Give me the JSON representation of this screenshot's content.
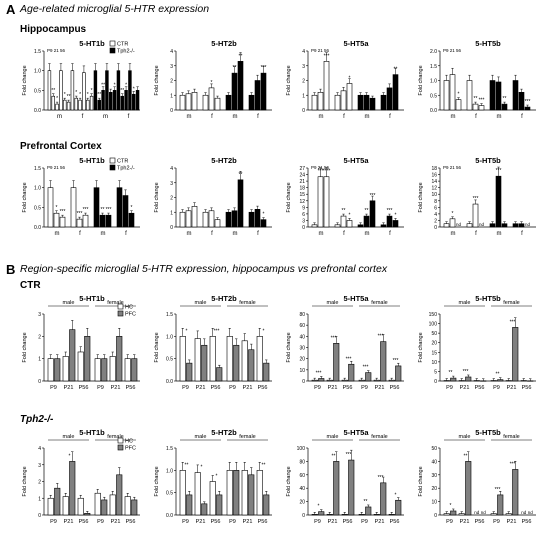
{
  "figure": {
    "sectionA": {
      "letter": "A",
      "title": "Age-related microglial 5-HTR expression"
    },
    "sectionB": {
      "letter": "B",
      "title": "Region-specific microglial 5-HTR expression, hippocampus vs prefrontal cortex"
    },
    "rowHippocampus": "Hippocampus",
    "rowPFC": "Prefrontal Cortex",
    "rowCTR": "CTR",
    "rowTph2": "Tph2-/-"
  },
  "chart_data": [
    {
      "id": "A1",
      "type": "bar",
      "title": "5-HT1b",
      "ylabel": "Fold change",
      "ylim": [
        0,
        1.5
      ],
      "yticks": [
        "0.0",
        "0.5",
        "1.0",
        "1.5"
      ],
      "top_label": "P9 21 56",
      "legend": [
        {
          "name": "CTR",
          "color": "#ffffff"
        },
        {
          "name": "Tph2-/-",
          "color": "#000000"
        }
      ],
      "groups": [
        "m",
        "f",
        "m",
        "f"
      ],
      "series": [
        {
          "name": "CTR",
          "values": [
            1.0,
            0.35,
            0.15,
            1.0,
            0.25,
            0.2
          ]
        },
        {
          "name": "CTR",
          "values": [
            1.0,
            0.3,
            0.25,
            0.95,
            0.25,
            0.35
          ]
        },
        {
          "name": "Tph2-/-",
          "values": [
            1.0,
            0.25,
            0.5,
            1.0,
            0.45,
            0.5
          ]
        },
        {
          "name": "Tph2-/-",
          "values": [
            1.0,
            0.35,
            0.5,
            1.0,
            0.4,
            0.5
          ]
        }
      ],
      "sig": [
        "",
        "**",
        "*",
        "",
        "*",
        "**",
        "",
        "*",
        "*",
        "",
        "*",
        "*",
        "",
        "**",
        "**",
        "",
        "",
        "*",
        "",
        "**",
        "*",
        "",
        "*",
        ""
      ]
    },
    {
      "id": "A2",
      "type": "bar",
      "title": "5-HT2b",
      "ylabel": "Fold change",
      "ylim": [
        0,
        4
      ],
      "yticks": [
        "0",
        "1",
        "2",
        "3",
        "4"
      ],
      "groups": [
        "m",
        "f",
        "m",
        "f"
      ],
      "series": [
        {
          "name": "CTR",
          "values": [
            1.0,
            1.1,
            1.2
          ]
        },
        {
          "name": "CTR",
          "values": [
            1.0,
            1.5,
            0.8
          ]
        },
        {
          "name": "Tph2-/-",
          "values": [
            1.0,
            2.5,
            3.3
          ]
        },
        {
          "name": "Tph2-/-",
          "values": [
            1.0,
            2.0,
            2.5
          ]
        }
      ],
      "sig": [
        "",
        "",
        "",
        "",
        "*",
        "",
        "",
        "**",
        "**",
        "",
        "",
        "***"
      ]
    },
    {
      "id": "A3",
      "type": "bar",
      "title": "5-HT5a",
      "ylabel": "Fold change",
      "ylim": [
        0,
        4
      ],
      "yticks": [
        "0",
        "1",
        "2",
        "3",
        "4"
      ],
      "top_label": "P9 21 56",
      "groups": [
        "m",
        "f",
        "m",
        "f"
      ],
      "series": [
        {
          "name": "CTR",
          "values": [
            1.0,
            1.2,
            3.3
          ]
        },
        {
          "name": "CTR",
          "values": [
            1.0,
            1.3,
            1.8
          ]
        },
        {
          "name": "Tph2-/-",
          "values": [
            1.0,
            1.0,
            0.8
          ]
        },
        {
          "name": "Tph2-/-",
          "values": [
            1.0,
            1.5,
            2.4
          ]
        }
      ],
      "sig": [
        "",
        "",
        "***",
        "",
        "",
        "*",
        "",
        "",
        "",
        "",
        "",
        "**"
      ]
    },
    {
      "id": "A4",
      "type": "bar",
      "title": "5-HT5b",
      "ylabel": "Fold change",
      "ylim": [
        0,
        2.0
      ],
      "yticks": [
        "0.0",
        "0.5",
        "1.0",
        "1.5",
        "2.0"
      ],
      "top_label": "P9 21 56",
      "groups": [
        "m",
        "f",
        "m",
        "f"
      ],
      "series": [
        {
          "name": "CTR",
          "values": [
            1.0,
            1.2,
            0.35
          ]
        },
        {
          "name": "CTR",
          "values": [
            1.0,
            0.2,
            0.15
          ]
        },
        {
          "name": "Tph2-/-",
          "values": [
            1.0,
            0.95,
            0.2
          ]
        },
        {
          "name": "Tph2-/-",
          "values": [
            1.0,
            0.6,
            0.1
          ]
        }
      ],
      "sig": [
        "",
        "",
        "*",
        "",
        "**",
        "***",
        "",
        "",
        "**",
        "",
        "",
        "***"
      ]
    },
    {
      "id": "A5",
      "type": "bar",
      "title": "5-HT1b",
      "ylabel": "Fold change",
      "ylim": [
        0,
        1.5
      ],
      "yticks": [
        "0.0",
        "0.5",
        "1.0",
        "1.5"
      ],
      "top_label": "P9 21 56",
      "legend": [
        {
          "name": "CTR",
          "color": "#ffffff"
        },
        {
          "name": "Tph2-/-",
          "color": "#000000"
        }
      ],
      "groups": [
        "m",
        "f",
        "m",
        "f"
      ],
      "series": [
        {
          "name": "CTR",
          "values": [
            1.0,
            0.35,
            0.25
          ]
        },
        {
          "name": "CTR",
          "values": [
            1.0,
            0.2,
            0.3
          ]
        },
        {
          "name": "Tph2-/-",
          "values": [
            1.0,
            0.3,
            0.3
          ]
        },
        {
          "name": "Tph2-/-",
          "values": [
            1.0,
            0.8,
            0.35
          ]
        }
      ],
      "sig": [
        "",
        "*",
        "***",
        "",
        "***",
        "***",
        "",
        "**",
        "***",
        "",
        "",
        "*"
      ]
    },
    {
      "id": "A6",
      "type": "bar",
      "title": "5-HT2b",
      "ylabel": "Fold change",
      "ylim": [
        0,
        4
      ],
      "yticks": [
        "0",
        "1",
        "2",
        "3",
        "4"
      ],
      "groups": [
        "m",
        "f",
        "m",
        "f"
      ],
      "series": [
        {
          "name": "CTR",
          "values": [
            1.0,
            1.1,
            1.4
          ]
        },
        {
          "name": "CTR",
          "values": [
            1.0,
            1.1,
            0.5
          ]
        },
        {
          "name": "Tph2-/-",
          "values": [
            1.0,
            1.1,
            3.2
          ]
        },
        {
          "name": "Tph2-/-",
          "values": [
            1.0,
            1.2,
            0.5
          ]
        }
      ],
      "sig": [
        "",
        "",
        "",
        "",
        "",
        "",
        "",
        "",
        "**",
        "",
        "",
        "*"
      ]
    },
    {
      "id": "A7",
      "type": "bar",
      "title": "5-HT5a",
      "ylabel": "Fold change",
      "ylim": [
        0,
        27
      ],
      "yticks": [
        "0",
        "3",
        "6",
        "9",
        "12",
        "15",
        "18",
        "21",
        "24",
        "27"
      ],
      "top_label": "P9 21 56",
      "groups": [
        "m",
        "f",
        "m",
        "f"
      ],
      "series": [
        {
          "name": "CTR",
          "values": [
            1.0,
            23.0,
            23.0
          ]
        },
        {
          "name": "CTR",
          "values": [
            1.0,
            5.0,
            3.0
          ]
        },
        {
          "name": "Tph2-/-",
          "values": [
            1.0,
            5.0,
            12.0
          ]
        },
        {
          "name": "Tph2-/-",
          "values": [
            1.0,
            5.0,
            3.0
          ]
        }
      ],
      "sig": [
        "",
        "***",
        "****",
        "",
        "**",
        "*",
        "",
        "**",
        "***",
        "",
        "***",
        "*"
      ]
    },
    {
      "id": "A8",
      "type": "bar",
      "title": "5-HT5b",
      "ylabel": "Fold change",
      "ylim": [
        0,
        18
      ],
      "yticks": [
        "0",
        "2",
        "4",
        "6",
        "8",
        "10",
        "12",
        "14",
        "16",
        "18"
      ],
      "top_label": "P9 21 56",
      "groups": [
        "m",
        "f",
        "m",
        "f"
      ],
      "series": [
        {
          "name": "CTR",
          "values": [
            1.0,
            2.5,
            0
          ]
        },
        {
          "name": "CTR",
          "values": [
            1.0,
            7.0,
            0
          ]
        },
        {
          "name": "Tph2-/-",
          "values": [
            1.0,
            15.5,
            1.0
          ]
        },
        {
          "name": "Tph2-/-",
          "values": [
            1.0,
            1.0,
            0
          ]
        }
      ],
      "nd": [
        false,
        false,
        true,
        false,
        false,
        true,
        false,
        false,
        false,
        false,
        false,
        true
      ],
      "sig": [
        "",
        "*",
        "",
        "",
        "***",
        "",
        "",
        "***",
        "",
        "",
        "",
        ""
      ]
    },
    {
      "id": "B1",
      "type": "bar",
      "title": "5-HT1b",
      "ylabel": "Fold change",
      "ylim": [
        0,
        3
      ],
      "yticks": [
        "0",
        "1",
        "2",
        "3"
      ],
      "legend": [
        {
          "name": "HC",
          "color": "#ffffff"
        },
        {
          "name": "PFC",
          "color": "#808080"
        }
      ],
      "sexes": [
        "male",
        "female"
      ],
      "ages": [
        "P9",
        "P21",
        "P56"
      ],
      "series": [
        {
          "name": "HC",
          "values": [
            1.0,
            1.1,
            1.3,
            1.0,
            1.1,
            1.0
          ]
        },
        {
          "name": "PFC",
          "values": [
            1.0,
            2.3,
            2.0,
            1.0,
            2.0,
            1.0
          ]
        }
      ],
      "sig": [
        "",
        "",
        "",
        "",
        "",
        ""
      ]
    },
    {
      "id": "B2",
      "type": "bar",
      "title": "5-HT2b",
      "ylabel": "Fold change",
      "ylim": [
        0,
        1.5
      ],
      "yticks": [
        "0.0",
        "0.5",
        "1.0",
        "1.5"
      ],
      "sexes": [
        "male",
        "female"
      ],
      "ages": [
        "P9",
        "P21",
        "P56"
      ],
      "series": [
        {
          "name": "HC",
          "values": [
            1.0,
            0.95,
            1.0,
            1.0,
            0.9,
            1.0
          ]
        },
        {
          "name": "PFC",
          "values": [
            0.4,
            0.8,
            0.3,
            0.8,
            0.7,
            0.4
          ]
        }
      ],
      "sig": [
        "*",
        "",
        "***",
        "",
        "",
        "*"
      ]
    },
    {
      "id": "B3",
      "type": "bar",
      "title": "5-HT5a",
      "ylabel": "Fold change",
      "ylim": [
        0,
        80
      ],
      "yticks": [
        "0",
        "10",
        "20",
        "30",
        "40",
        "60",
        "80"
      ],
      "sexes": [
        "male",
        "female"
      ],
      "ages": [
        "P9",
        "P21",
        "P56"
      ],
      "series": [
        {
          "name": "HC",
          "values": [
            1.0,
            1.0,
            1.0,
            1.0,
            1.0,
            1.0
          ]
        },
        {
          "name": "PFC",
          "values": [
            3.0,
            45.0,
            20.0,
            10.0,
            47.0,
            18.0
          ]
        }
      ],
      "sig": [
        "***",
        "***",
        "***",
        "***",
        "***",
        "***"
      ]
    },
    {
      "id": "B4",
      "type": "bar",
      "title": "5-HT5b",
      "ylabel": "Fold change",
      "ylim": [
        0,
        150
      ],
      "yticks": [
        "0",
        "5",
        "10",
        "15",
        "20",
        "50",
        "100",
        "150"
      ],
      "sexes": [
        "male",
        "female"
      ],
      "ages": [
        "P9",
        "P21",
        "P56"
      ],
      "series": [
        {
          "name": "HC",
          "values": [
            1.0,
            1.0,
            1.0,
            1.0,
            1.0,
            1.0
          ]
        },
        {
          "name": "PFC",
          "values": [
            6.5,
            9.0,
            0.5,
            3.0,
            120.0,
            0.5
          ]
        }
      ],
      "sig": [
        "**",
        "***",
        "",
        "**",
        "***",
        ""
      ]
    },
    {
      "id": "B5",
      "type": "bar",
      "title": "5-HT1b",
      "ylabel": "Fold change",
      "ylim": [
        0,
        4
      ],
      "yticks": [
        "0",
        "1",
        "2",
        "3",
        "4"
      ],
      "legend": [
        {
          "name": "HC",
          "color": "#ffffff"
        },
        {
          "name": "PFC",
          "color": "#808080"
        }
      ],
      "sexes": [
        "male",
        "female"
      ],
      "ages": [
        "P9",
        "P21",
        "P56"
      ],
      "series": [
        {
          "name": "HC",
          "values": [
            1.0,
            1.1,
            1.0,
            1.3,
            1.2,
            1.1
          ]
        },
        {
          "name": "PFC",
          "values": [
            1.6,
            3.2,
            0.1,
            0.9,
            2.4,
            0.9
          ]
        }
      ],
      "sig": [
        "",
        "*",
        "",
        "",
        "",
        ""
      ]
    },
    {
      "id": "B6",
      "type": "bar",
      "title": "5-HT2b",
      "ylabel": "Fold change",
      "ylim": [
        0,
        1.5
      ],
      "yticks": [
        "0.0",
        "0.5",
        "1.0",
        "1.5"
      ],
      "sexes": [
        "male",
        "female"
      ],
      "ages": [
        "P9",
        "P21",
        "P56"
      ],
      "series": [
        {
          "name": "HC",
          "values": [
            1.0,
            0.95,
            0.75,
            1.0,
            1.0,
            1.0
          ]
        },
        {
          "name": "PFC",
          "values": [
            0.45,
            0.25,
            0.45,
            1.0,
            0.9,
            0.45
          ]
        }
      ],
      "sig": [
        "**",
        "*",
        "*",
        "",
        "",
        "**"
      ]
    },
    {
      "id": "B7",
      "type": "bar",
      "title": "5-HT5a",
      "ylabel": "Fold change",
      "ylim": [
        0,
        100
      ],
      "yticks": [
        "0",
        "20",
        "40",
        "60",
        "80",
        "100"
      ],
      "sexes": [
        "male",
        "female"
      ],
      "ages": [
        "P9",
        "P21",
        "P56"
      ],
      "series": [
        {
          "name": "HC",
          "values": [
            1.0,
            1.0,
            1.0,
            1.0,
            1.0,
            1.0
          ]
        },
        {
          "name": "PFC",
          "values": [
            5.0,
            80.0,
            82.0,
            12.0,
            48.0,
            22.0
          ]
        }
      ],
      "sig": [
        "*",
        "**",
        "***",
        "**",
        "***",
        "*"
      ]
    },
    {
      "id": "B8",
      "type": "bar",
      "title": "5-HT5b",
      "ylabel": "Fold change",
      "ylim": [
        0,
        50
      ],
      "yticks": [
        "0",
        "10",
        "20",
        "30",
        "40",
        "50"
      ],
      "sexes": [
        "male",
        "female"
      ],
      "ages": [
        "P9",
        "P21",
        "P56"
      ],
      "series": [
        {
          "name": "HC",
          "values": [
            1.0,
            1.0,
            0,
            1.0,
            1.0,
            0
          ]
        },
        {
          "name": "PFC",
          "values": [
            3.0,
            40.0,
            0,
            15.0,
            34.0,
            0
          ]
        }
      ],
      "nd": [
        false,
        false,
        true,
        false,
        false,
        true
      ],
      "sig": [
        "*",
        "**",
        "",
        "***",
        "***",
        ""
      ]
    }
  ]
}
